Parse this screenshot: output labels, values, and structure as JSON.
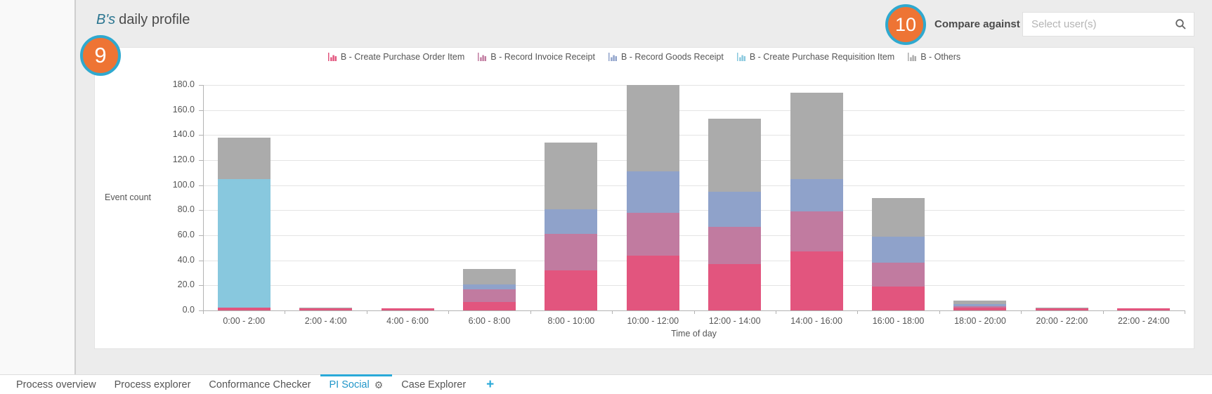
{
  "header": {
    "title_user": "B's",
    "title_rest": "daily profile",
    "compare_label": "Compare against",
    "search_placeholder": "Select user(s)"
  },
  "annotations": {
    "step9": "9",
    "step10": "10"
  },
  "colors": {
    "accent_blue": "#29a9d8",
    "active_tab_text": "#2196c9",
    "badge_fill": "#ee7434",
    "badge_ring": "#2fa9cf",
    "title_teal": "#2a7590",
    "grid": "#e4e4e4",
    "axis": "#b3b3b3"
  },
  "chart_data": {
    "type": "bar",
    "stacked": true,
    "xlabel": "Time of day",
    "ylabel": "Event count",
    "ylim": [
      0,
      180
    ],
    "ytick_step": 20,
    "yticks": [
      "0.0",
      "20.0",
      "40.0",
      "60.0",
      "80.0",
      "100.0",
      "120.0",
      "140.0",
      "160.0",
      "180.0"
    ],
    "grid": true,
    "legend_position": "top",
    "categories": [
      "0:00 - 2:00",
      "2:00 - 4:00",
      "4:00 - 6:00",
      "6:00 - 8:00",
      "8:00 - 10:00",
      "10:00 - 12:00",
      "12:00 - 14:00",
      "14:00 - 16:00",
      "16:00 - 18:00",
      "18:00 - 20:00",
      "20:00 - 22:00",
      "22:00 - 24:00"
    ],
    "series": [
      {
        "name": "B - Create Purchase Order Item",
        "color": "#e2557e",
        "values": [
          2,
          1.5,
          1.5,
          7,
          32,
          44,
          37,
          47,
          19,
          2,
          1.5,
          1.5
        ]
      },
      {
        "name": "B - Record Invoice Receipt",
        "color": "#c17ba0",
        "values": [
          0,
          0,
          0,
          10,
          29,
          34,
          30,
          32,
          19,
          1.5,
          0,
          0
        ]
      },
      {
        "name": "B - Record Goods Receipt",
        "color": "#8fa2ca",
        "values": [
          0,
          0,
          0,
          4,
          20,
          33,
          28,
          26,
          21,
          1.5,
          0,
          0
        ]
      },
      {
        "name": "B - Create Purchase Requisition Item",
        "color": "#88c8de",
        "values": [
          103,
          0,
          0,
          0,
          0,
          0,
          0,
          0,
          0,
          0,
          0,
          0
        ]
      },
      {
        "name": "B - Others",
        "color": "#ababab",
        "values": [
          33,
          0.5,
          0,
          12,
          53,
          69,
          58,
          69,
          31,
          3,
          0.5,
          0
        ]
      }
    ]
  },
  "tabs": {
    "items": [
      {
        "label": "Process overview",
        "active": false,
        "has_gear": false
      },
      {
        "label": "Process explorer",
        "active": false,
        "has_gear": false
      },
      {
        "label": "Conformance Checker",
        "active": false,
        "has_gear": false
      },
      {
        "label": "PI Social",
        "active": true,
        "has_gear": true
      },
      {
        "label": "Case Explorer",
        "active": false,
        "has_gear": false
      }
    ],
    "gear_glyph": "⚙",
    "add_label": "+"
  }
}
